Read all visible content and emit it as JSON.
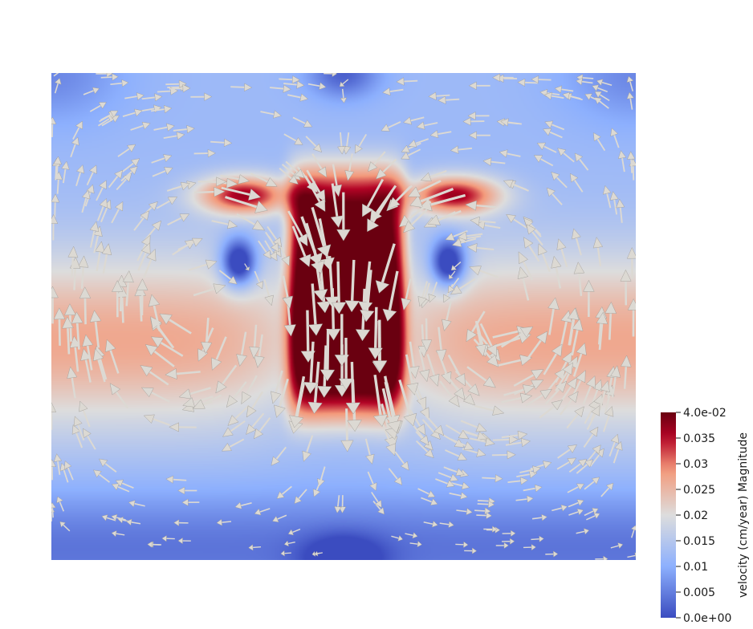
{
  "chart_data": {
    "type": "heatmap",
    "subtype": "vector-glyph field over scalar magnitude",
    "colormap": "Cool to Warm",
    "colormap_stops": [
      "#3b4cc0",
      "#8db0fe",
      "#dddddd",
      "#f49a7b",
      "#b40426",
      "#6a0010"
    ],
    "scalar_range": [
      0.0,
      0.04
    ],
    "colorbar": {
      "title": "velocity (cm/year) Magnitude",
      "ticks": [
        "4.0e-02",
        "0.035",
        "0.03",
        "0.025",
        "0.02",
        "0.015",
        "0.01",
        "0.005",
        "0.0e+00"
      ],
      "tick_values": [
        0.04,
        0.035,
        0.03,
        0.025,
        0.02,
        0.015,
        0.01,
        0.005,
        0.0
      ]
    },
    "flow": {
      "pattern": "two counter-rotating convection cells with central upwelling",
      "peak_magnitude": 0.04,
      "low_magnitude_spots": [
        "left vortex core",
        "right vortex core",
        "top-center",
        "bottom-center"
      ]
    },
    "glyph_color": "#dcd9d3",
    "glyph_type": "arrow"
  }
}
